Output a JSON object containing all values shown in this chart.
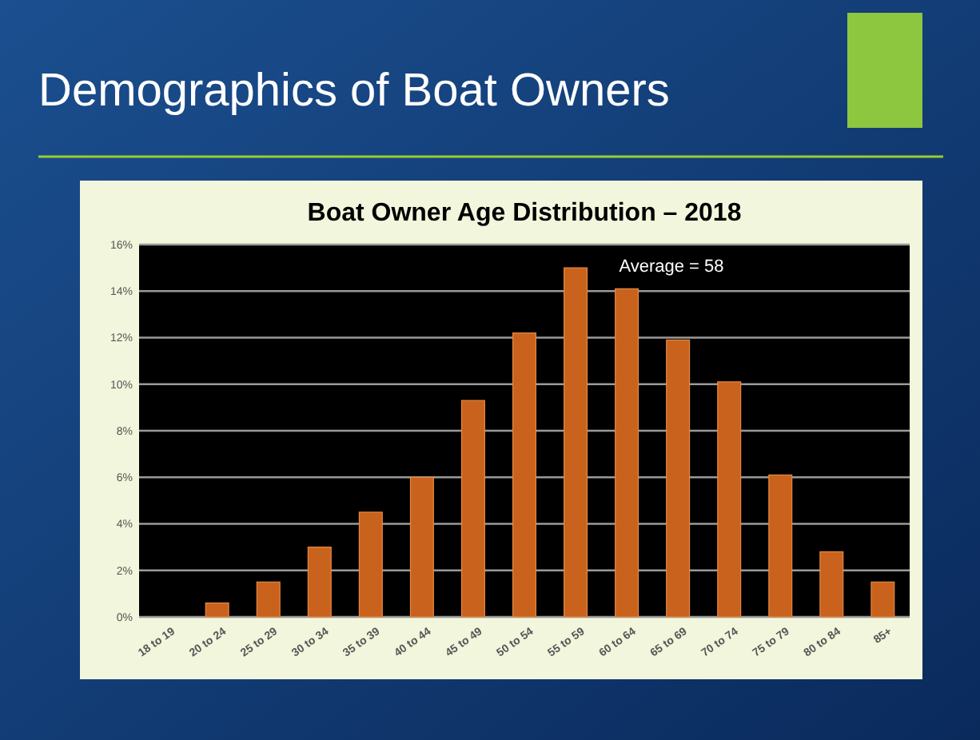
{
  "chart_data": {
    "type": "bar",
    "title": "Demographics of Boat Owners",
    "subtitle": "Boat Owner Age Distribution – 2018",
    "categories": [
      "18 to 19",
      "20 to 24",
      "25 to 29",
      "30 to 34",
      "35 to 39",
      "40 to 44",
      "45 to 49",
      "50 to 54",
      "55 to 59",
      "60 to 64",
      "65 to 69",
      "70 to 74",
      "75 to 79",
      "80 to 84",
      "85+"
    ],
    "values": [
      0,
      0.6,
      1.5,
      3.0,
      4.5,
      6.0,
      9.3,
      12.2,
      15.0,
      14.1,
      11.9,
      10.1,
      6.1,
      2.8,
      1.5
    ],
    "color": "#c8621c",
    "ylim": [
      0,
      16
    ],
    "yticks": [
      {
        "value": 0,
        "label": "0%"
      },
      {
        "value": 2,
        "label": "2%"
      },
      {
        "value": 4,
        "label": "4%"
      },
      {
        "value": 6,
        "label": "6%"
      },
      {
        "value": 8,
        "label": "8%"
      },
      {
        "value": 10,
        "label": "10%"
      },
      {
        "value": 12,
        "label": "12%"
      },
      {
        "value": 14,
        "label": "14%"
      },
      {
        "value": 16,
        "label": "16%"
      }
    ],
    "grid": "y",
    "annotations": [
      "Average = 58"
    ]
  }
}
